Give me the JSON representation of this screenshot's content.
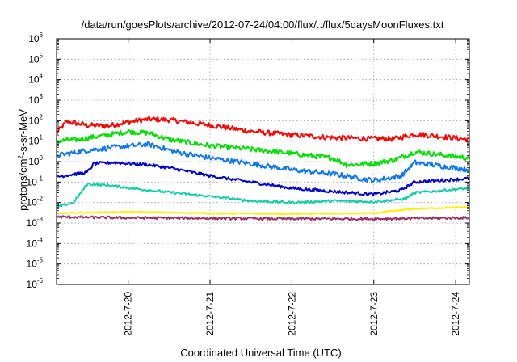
{
  "chart_data": {
    "type": "line",
    "title": "/data/run/goesPlots/archive/2012-07-24/04:00/flux/../flux/5daysMoonFluxes.txt",
    "xlabel": "Coordinated Universal Time (UTC)",
    "ylabel": {
      "prefix": "protons/cm",
      "superscript": "2",
      "suffix": "-s-sr-MeV"
    },
    "y_scale": "log",
    "ylim": [
      1e-06,
      1000000.0
    ],
    "y_ticks": [
      {
        "base": "10",
        "exp": "-6",
        "value": 1e-06
      },
      {
        "base": "10",
        "exp": "-5",
        "value": 1e-05
      },
      {
        "base": "10",
        "exp": "-4",
        "value": 0.0001
      },
      {
        "base": "10",
        "exp": "-3",
        "value": 0.001
      },
      {
        "base": "10",
        "exp": "-2",
        "value": 0.01
      },
      {
        "base": "10",
        "exp": "-1",
        "value": 0.1
      },
      {
        "base": "10",
        "exp": "0",
        "value": 1
      },
      {
        "base": "10",
        "exp": "1",
        "value": 10
      },
      {
        "base": "10",
        "exp": "2",
        "value": 100
      },
      {
        "base": "10",
        "exp": "3",
        "value": 1000
      },
      {
        "base": "10",
        "exp": "4",
        "value": 10000
      },
      {
        "base": "10",
        "exp": "5",
        "value": 100000
      },
      {
        "base": "10",
        "exp": "6",
        "value": 1000000
      }
    ],
    "xlim": [
      "2012-07-19T03:00",
      "2012-07-24T04:00"
    ],
    "x_ticks": [
      {
        "label": "2012-7-20",
        "value": "2012-07-20T00:00"
      },
      {
        "label": "2012-7-21",
        "value": "2012-07-21T00:00"
      },
      {
        "label": "2012-7-22",
        "value": "2012-07-22T00:00"
      },
      {
        "label": "2012-7-23",
        "value": "2012-07-23T00:00"
      },
      {
        "label": "2012-7-24",
        "value": "2012-07-24T00:00"
      }
    ],
    "grid": true,
    "legend": "none",
    "series": [
      {
        "color": "#ff0000",
        "noise": 0.25,
        "points": [
          [
            "2012-07-19T03:00",
            25
          ],
          [
            "2012-07-19T06:00",
            90
          ],
          [
            "2012-07-19T12:00",
            60
          ],
          [
            "2012-07-19T18:00",
            55
          ],
          [
            "2012-07-20T00:00",
            85
          ],
          [
            "2012-07-20T06:00",
            120
          ],
          [
            "2012-07-20T12:00",
            110
          ],
          [
            "2012-07-21T00:00",
            60
          ],
          [
            "2012-07-21T12:00",
            30
          ],
          [
            "2012-07-22T00:00",
            20
          ],
          [
            "2012-07-22T12:00",
            15
          ],
          [
            "2012-07-23T00:00",
            13
          ],
          [
            "2012-07-23T06:00",
            13
          ],
          [
            "2012-07-23T12:00",
            22
          ],
          [
            "2012-07-23T18:00",
            18
          ],
          [
            "2012-07-24T04:00",
            12
          ]
        ]
      },
      {
        "color": "#00dd00",
        "noise": 0.25,
        "points": [
          [
            "2012-07-19T03:00",
            10
          ],
          [
            "2012-07-19T09:00",
            12
          ],
          [
            "2012-07-19T18:00",
            20
          ],
          [
            "2012-07-20T00:00",
            30
          ],
          [
            "2012-07-20T06:00",
            25
          ],
          [
            "2012-07-20T12:00",
            12
          ],
          [
            "2012-07-21T00:00",
            6
          ],
          [
            "2012-07-21T12:00",
            4
          ],
          [
            "2012-07-22T00:00",
            2.5
          ],
          [
            "2012-07-22T12:00",
            1.5
          ],
          [
            "2012-07-22T16:00",
            0.7
          ],
          [
            "2012-07-23T00:00",
            0.8
          ],
          [
            "2012-07-23T06:00",
            1.2
          ],
          [
            "2012-07-23T12:00",
            3
          ],
          [
            "2012-07-24T04:00",
            1.5
          ]
        ]
      },
      {
        "color": "#1177ee",
        "noise": 0.25,
        "points": [
          [
            "2012-07-19T03:00",
            2
          ],
          [
            "2012-07-19T12:00",
            3.5
          ],
          [
            "2012-07-19T20:00",
            5
          ],
          [
            "2012-07-20T06:00",
            7
          ],
          [
            "2012-07-20T14:00",
            3
          ],
          [
            "2012-07-21T00:00",
            1.5
          ],
          [
            "2012-07-21T12:00",
            0.8
          ],
          [
            "2012-07-22T00:00",
            0.4
          ],
          [
            "2012-07-22T12:00",
            0.25
          ],
          [
            "2012-07-23T00:00",
            0.12
          ],
          [
            "2012-07-23T08:00",
            0.2
          ],
          [
            "2012-07-23T12:00",
            0.9
          ],
          [
            "2012-07-24T04:00",
            0.4
          ]
        ]
      },
      {
        "color": "#0000cc",
        "noise": 0.15,
        "points": [
          [
            "2012-07-19T03:00",
            0.18
          ],
          [
            "2012-07-19T12:00",
            0.3
          ],
          [
            "2012-07-19T14:00",
            0.8
          ],
          [
            "2012-07-19T20:00",
            0.9
          ],
          [
            "2012-07-20T06:00",
            0.7
          ],
          [
            "2012-07-20T12:00",
            0.5
          ],
          [
            "2012-07-21T00:00",
            0.2
          ],
          [
            "2012-07-21T12:00",
            0.1
          ],
          [
            "2012-07-22T00:00",
            0.05
          ],
          [
            "2012-07-22T12:00",
            0.035
          ],
          [
            "2012-07-23T00:00",
            0.025
          ],
          [
            "2012-07-23T08:00",
            0.04
          ],
          [
            "2012-07-23T12:00",
            0.1
          ],
          [
            "2012-07-24T04:00",
            0.15
          ]
        ]
      },
      {
        "color": "#11ccaa",
        "noise": 0.12,
        "points": [
          [
            "2012-07-19T03:00",
            0.006
          ],
          [
            "2012-07-19T08:00",
            0.01
          ],
          [
            "2012-07-19T12:00",
            0.08
          ],
          [
            "2012-07-19T18:00",
            0.07
          ],
          [
            "2012-07-20T06:00",
            0.04
          ],
          [
            "2012-07-21T00:00",
            0.02
          ],
          [
            "2012-07-21T12:00",
            0.012
          ],
          [
            "2012-07-22T00:00",
            0.01
          ],
          [
            "2012-07-22T12:00",
            0.012
          ],
          [
            "2012-07-23T00:00",
            0.011
          ],
          [
            "2012-07-23T09:00",
            0.015
          ],
          [
            "2012-07-23T12:00",
            0.03
          ],
          [
            "2012-07-24T04:00",
            0.05
          ]
        ]
      },
      {
        "color": "#ffee00",
        "noise": 0.06,
        "points": [
          [
            "2012-07-19T03:00",
            0.003
          ],
          [
            "2012-07-20T00:00",
            0.0035
          ],
          [
            "2012-07-21T00:00",
            0.003
          ],
          [
            "2012-07-22T00:00",
            0.0028
          ],
          [
            "2012-07-23T00:00",
            0.003
          ],
          [
            "2012-07-23T12:00",
            0.005
          ],
          [
            "2012-07-24T04:00",
            0.006
          ]
        ]
      },
      {
        "color": "#993366",
        "noise": 0.12,
        "points": [
          [
            "2012-07-19T03:00",
            0.002
          ],
          [
            "2012-07-20T00:00",
            0.0018
          ],
          [
            "2012-07-21T00:00",
            0.0017
          ],
          [
            "2012-07-22T00:00",
            0.0016
          ],
          [
            "2012-07-23T00:00",
            0.0016
          ],
          [
            "2012-07-24T04:00",
            0.0018
          ]
        ]
      }
    ]
  }
}
